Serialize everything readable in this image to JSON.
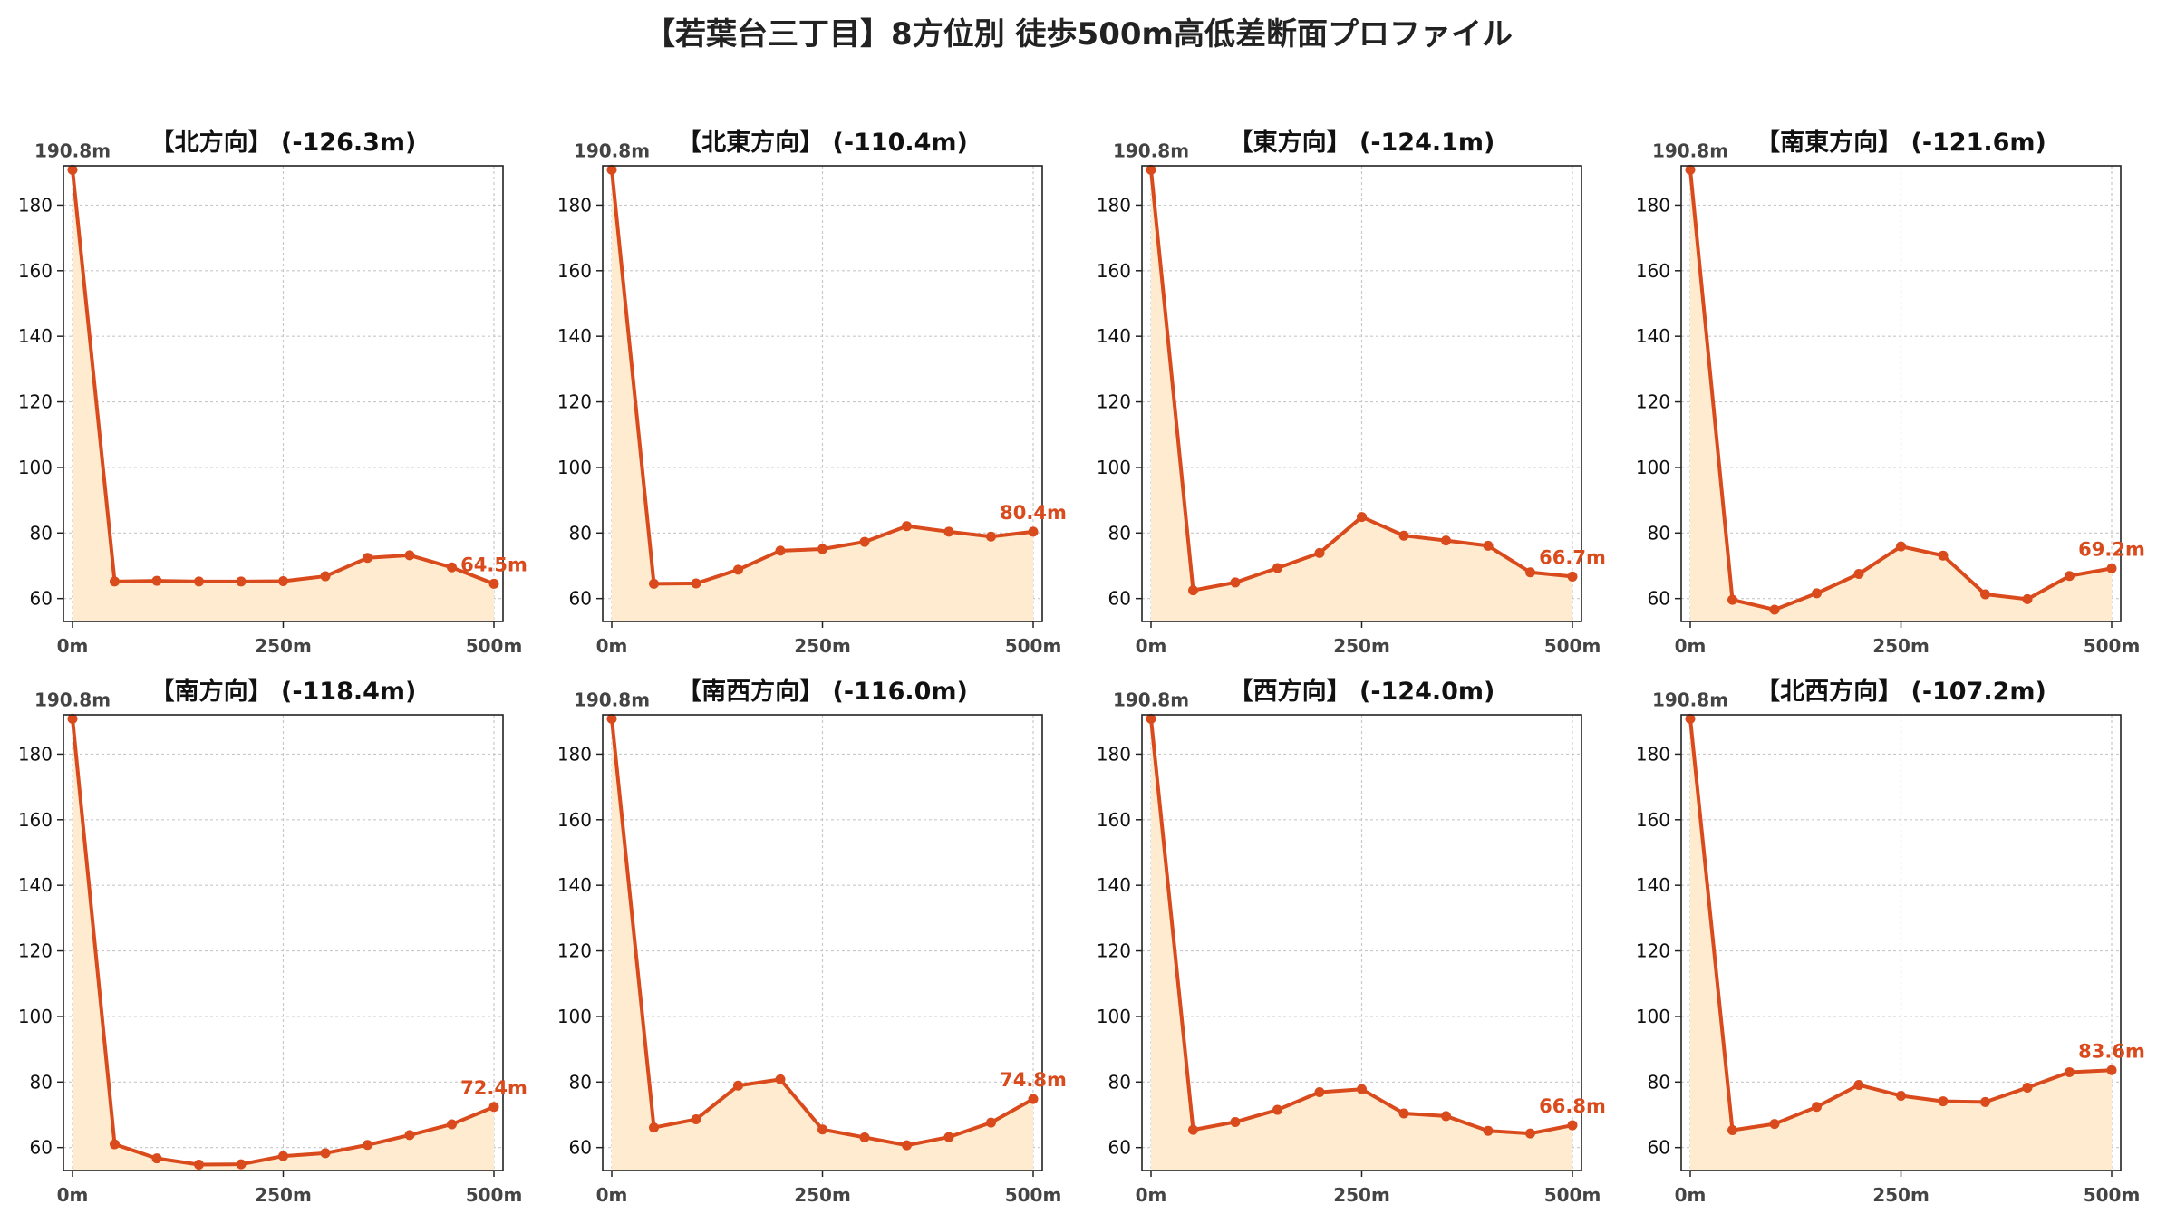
{
  "title": "【若葉台三丁目】8方位別 徒歩500m高低差断面プロファイル",
  "colors": {
    "line": "#d94a1c",
    "fill": "#ffecd0",
    "grid": "#c8c8c8",
    "axis": "#222222"
  },
  "chart_data": [
    {
      "type": "area",
      "title": "【北方向】 (-126.3m)",
      "x": [
        0,
        50,
        100,
        150,
        200,
        250,
        300,
        350,
        400,
        450,
        500
      ],
      "values": [
        190.8,
        65.2,
        65.4,
        65.2,
        65.2,
        65.3,
        66.8,
        72.4,
        73.2,
        69.5,
        64.5
      ],
      "start_label": "190.8m",
      "end_label": "64.5m",
      "xticks": [
        "0m",
        "250m",
        "500m"
      ],
      "xlim": [
        0,
        500
      ],
      "ylim": [
        53,
        192
      ],
      "yticks": [
        60,
        80,
        100,
        120,
        140,
        160,
        180
      ],
      "grid": true
    },
    {
      "type": "area",
      "title": "【北東方向】 (-110.4m)",
      "x": [
        0,
        50,
        100,
        150,
        200,
        250,
        300,
        350,
        400,
        450,
        500
      ],
      "values": [
        190.8,
        64.5,
        64.6,
        68.8,
        74.6,
        75.1,
        77.3,
        82.1,
        80.4,
        78.9,
        80.4
      ],
      "start_label": "190.8m",
      "end_label": "80.4m",
      "xticks": [
        "0m",
        "250m",
        "500m"
      ],
      "xlim": [
        0,
        500
      ],
      "ylim": [
        53,
        192
      ],
      "yticks": [
        60,
        80,
        100,
        120,
        140,
        160,
        180
      ],
      "grid": true
    },
    {
      "type": "area",
      "title": "【東方向】 (-124.1m)",
      "x": [
        0,
        50,
        100,
        150,
        200,
        250,
        300,
        350,
        400,
        450,
        500
      ],
      "values": [
        190.8,
        62.5,
        64.9,
        69.3,
        73.9,
        84.9,
        79.2,
        77.7,
        76.1,
        68.0,
        66.7
      ],
      "start_label": "190.8m",
      "end_label": "66.7m",
      "xticks": [
        "0m",
        "250m",
        "500m"
      ],
      "xlim": [
        0,
        500
      ],
      "ylim": [
        53,
        192
      ],
      "yticks": [
        60,
        80,
        100,
        120,
        140,
        160,
        180
      ],
      "grid": true
    },
    {
      "type": "area",
      "title": "【南東方向】 (-121.6m)",
      "x": [
        0,
        50,
        100,
        150,
        200,
        250,
        300,
        350,
        400,
        450,
        500
      ],
      "values": [
        190.8,
        59.6,
        56.6,
        61.6,
        67.5,
        75.9,
        73.1,
        61.3,
        59.8,
        66.9,
        69.2
      ],
      "start_label": "190.8m",
      "end_label": "69.2m",
      "xticks": [
        "0m",
        "250m",
        "500m"
      ],
      "xlim": [
        0,
        500
      ],
      "ylim": [
        53,
        192
      ],
      "yticks": [
        60,
        80,
        100,
        120,
        140,
        160,
        180
      ],
      "grid": true
    },
    {
      "type": "area",
      "title": "【南方向】 (-118.4m)",
      "x": [
        0,
        50,
        100,
        150,
        200,
        250,
        300,
        350,
        400,
        450,
        500
      ],
      "values": [
        190.8,
        61.0,
        56.7,
        54.8,
        54.9,
        57.4,
        58.3,
        60.8,
        63.8,
        67.1,
        72.4
      ],
      "start_label": "190.8m",
      "end_label": "72.4m",
      "xticks": [
        "0m",
        "250m",
        "500m"
      ],
      "xlim": [
        0,
        500
      ],
      "ylim": [
        53,
        192
      ],
      "yticks": [
        60,
        80,
        100,
        120,
        140,
        160,
        180
      ],
      "grid": true
    },
    {
      "type": "area",
      "title": "【南西方向】 (-116.0m)",
      "x": [
        0,
        50,
        100,
        150,
        200,
        250,
        300,
        350,
        400,
        450,
        500
      ],
      "values": [
        190.8,
        66.1,
        68.6,
        78.9,
        80.8,
        65.5,
        63.1,
        60.7,
        63.2,
        67.6,
        74.8
      ],
      "start_label": "190.8m",
      "end_label": "74.8m",
      "xticks": [
        "0m",
        "250m",
        "500m"
      ],
      "xlim": [
        0,
        500
      ],
      "ylim": [
        53,
        192
      ],
      "yticks": [
        60,
        80,
        100,
        120,
        140,
        160,
        180
      ],
      "grid": true
    },
    {
      "type": "area",
      "title": "【西方向】 (-124.0m)",
      "x": [
        0,
        50,
        100,
        150,
        200,
        250,
        300,
        350,
        400,
        450,
        500
      ],
      "values": [
        190.8,
        65.4,
        67.8,
        71.5,
        76.9,
        77.8,
        70.4,
        69.6,
        65.1,
        64.3,
        66.8
      ],
      "start_label": "190.8m",
      "end_label": "66.8m",
      "xticks": [
        "0m",
        "250m",
        "500m"
      ],
      "xlim": [
        0,
        500
      ],
      "ylim": [
        53,
        192
      ],
      "yticks": [
        60,
        80,
        100,
        120,
        140,
        160,
        180
      ],
      "grid": true
    },
    {
      "type": "area",
      "title": "【北西方向】 (-107.2m)",
      "x": [
        0,
        50,
        100,
        150,
        200,
        250,
        300,
        350,
        400,
        450,
        500
      ],
      "values": [
        190.8,
        65.3,
        67.2,
        72.4,
        79.1,
        75.8,
        74.1,
        73.9,
        78.3,
        83.0,
        83.6
      ],
      "start_label": "190.8m",
      "end_label": "83.6m",
      "xticks": [
        "0m",
        "250m",
        "500m"
      ],
      "xlim": [
        0,
        500
      ],
      "ylim": [
        53,
        192
      ],
      "yticks": [
        60,
        80,
        100,
        120,
        140,
        160,
        180
      ],
      "grid": true
    }
  ]
}
